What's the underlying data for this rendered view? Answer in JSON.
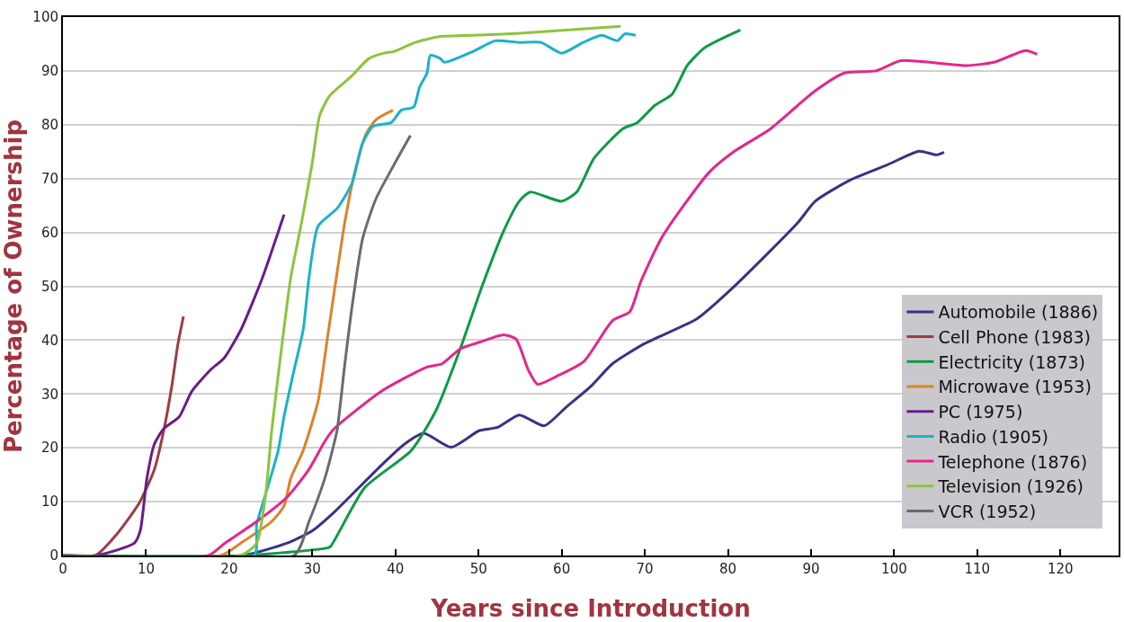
{
  "chart_data": {
    "type": "line",
    "xlabel": "Years since Introduction",
    "ylabel": "Percentage of Ownership",
    "xlim": [
      0,
      127
    ],
    "ylim": [
      0,
      100
    ],
    "xticks": [
      0,
      10,
      20,
      30,
      40,
      50,
      60,
      70,
      80,
      90,
      100,
      110,
      120
    ],
    "yticks": [
      0,
      10,
      20,
      30,
      40,
      50,
      60,
      70,
      80,
      90,
      100
    ],
    "grid": "y",
    "legend": "right",
    "marker": "none",
    "line_style": "solid",
    "series": [
      {
        "name": "Automobile (1886)",
        "color": "#3a3187",
        "x": [
          0,
          21.5,
          27,
          30,
          32.6,
          34.5,
          38.2,
          41.1,
          43.4,
          46.7,
          50.1,
          52.3,
          54.9,
          57.9,
          60.5,
          63.5,
          66.1,
          69.9,
          76.3,
          80.7,
          88.4,
          90.5,
          94.8,
          99.1,
          103,
          105.1,
          106
        ],
        "values": [
          0,
          0,
          2.3,
          4.6,
          8,
          10.9,
          16.6,
          20.7,
          22.7,
          20.1,
          23.2,
          23.8,
          26.1,
          24.1,
          27.5,
          31.4,
          35.6,
          39.3,
          44,
          49.9,
          61.8,
          65.8,
          69.8,
          72.5,
          75.1,
          74.4,
          74.9
        ]
      },
      {
        "name": "Cell Phone (1983)",
        "color": "#9e3a45",
        "x": [
          0,
          3.9,
          6.5,
          9.2,
          11,
          12.1,
          13.1,
          13.8,
          14.5
        ],
        "values": [
          0,
          0,
          4,
          9.8,
          16,
          23,
          31.5,
          39,
          44.4
        ]
      },
      {
        "name": "Electricity (1873)",
        "color": "#0e9a45",
        "x": [
          0,
          22,
          31.8,
          32.2,
          36.3,
          41.9,
          44.9,
          47.8,
          50.4,
          53,
          54.9,
          56.2,
          60,
          61.8,
          63.9,
          67.4,
          69.1,
          71.2,
          73.3,
          75.1,
          77.2,
          81.5
        ],
        "values": [
          0,
          0,
          1.4,
          1.7,
          12.6,
          19.5,
          27,
          38.4,
          49.9,
          60.2,
          65.8,
          67.5,
          65.8,
          67.5,
          73.8,
          79.3,
          80.4,
          83.6,
          85.7,
          91,
          94.3,
          97.6
        ]
      },
      {
        "name": "Microwave (1953)",
        "color": "#dd8228",
        "x": [
          0,
          19,
          21.4,
          25.1,
          26.6,
          27.4,
          28.9,
          30.7,
          31.8,
          32.6,
          33.9,
          35.2,
          36.5,
          37.7,
          39.7
        ],
        "values": [
          0,
          0,
          2.3,
          6.3,
          9.2,
          14.3,
          19.5,
          28.7,
          40.2,
          48.6,
          61.8,
          71.8,
          78.4,
          81,
          82.7
        ]
      },
      {
        "name": "PC (1975)",
        "color": "#6a1b8a",
        "x": [
          0,
          4,
          8.6,
          9.3,
          10.1,
          11,
          12.1,
          14,
          15.5,
          17.7,
          19.4,
          21.4,
          24,
          26.6
        ],
        "values": [
          0,
          0,
          2.3,
          4.6,
          14.3,
          20.7,
          23.5,
          25.8,
          30.5,
          34.4,
          36.7,
          41.9,
          51.6,
          63.3
        ]
      },
      {
        "name": "Radio (1905)",
        "color": "#19b3c9",
        "x": [
          0,
          23,
          23.3,
          24.4,
          25.9,
          26.6,
          27.8,
          28.9,
          29.6,
          30.7,
          33,
          34.8,
          36,
          37.3,
          39.5,
          40.7,
          42.2,
          42.9,
          43.8,
          44.2,
          45.4,
          45.9,
          49.3,
          52,
          54.9,
          57.5,
          60,
          62.6,
          64.8,
          66.7,
          67.6,
          68.9
        ],
        "values": [
          0,
          0,
          5.7,
          11.5,
          19.5,
          25.8,
          34.4,
          41.9,
          51.6,
          61.2,
          64.5,
          69.2,
          76.4,
          79.7,
          80.4,
          82.7,
          83.3,
          87,
          89.6,
          92.9,
          92.3,
          91.6,
          93.6,
          95.6,
          95.3,
          95.3,
          93.3,
          95.3,
          96.6,
          95.6,
          96.9,
          96.6
        ]
      },
      {
        "name": "Telephone (1876)",
        "color": "#e5268a",
        "x": [
          0,
          17.5,
          19.5,
          23.3,
          27,
          29.6,
          31.5,
          32.6,
          38.2,
          43.8,
          45.6,
          47.8,
          50.1,
          53,
          54.5,
          56,
          57.1,
          59.4,
          62.7,
          66.1,
          68.2,
          69.5,
          72.1,
          77.7,
          80.7,
          84.9,
          88.4,
          90.5,
          94,
          97.8,
          100.8,
          108.6,
          112,
          115.8,
          117.2
        ],
        "values": [
          0,
          0,
          2.3,
          6.3,
          10.9,
          16,
          21.2,
          23.5,
          30.4,
          35,
          35.6,
          38.4,
          39.6,
          41,
          40.2,
          34.4,
          31.8,
          33.3,
          36.1,
          43.6,
          45.3,
          50.8,
          59.2,
          71.1,
          75,
          79,
          83.6,
          86.3,
          89.6,
          90,
          91.9,
          91,
          91.6,
          93.8,
          93.1
        ]
      },
      {
        "name": "Television (1926)",
        "color": "#8cc43c",
        "x": [
          0,
          21.4,
          23.3,
          24.4,
          25.1,
          26.2,
          27.4,
          28.7,
          30,
          30.9,
          32.1,
          34.7,
          36.8,
          38.6,
          39.8,
          42.4,
          45.4,
          49.3,
          55,
          67.1
        ],
        "values": [
          0,
          0,
          2.3,
          11.5,
          23,
          37.3,
          51.6,
          61.8,
          73,
          81.8,
          85.4,
          89,
          92.3,
          93.3,
          93.6,
          95.3,
          96.4,
          96.6,
          97,
          98.3
        ]
      },
      {
        "name": "VCR (1952)",
        "color": "#6b6b6b",
        "x": [
          0,
          27.8,
          29.6,
          31.5,
          32.6,
          33,
          33.9,
          34.7,
          36,
          36.5,
          37.7,
          39.8,
          41.8
        ],
        "values": [
          0,
          0,
          6.3,
          14.3,
          20.7,
          23.4,
          35.4,
          45.3,
          58.5,
          61.2,
          66.4,
          72.5,
          78
        ]
      }
    ]
  }
}
